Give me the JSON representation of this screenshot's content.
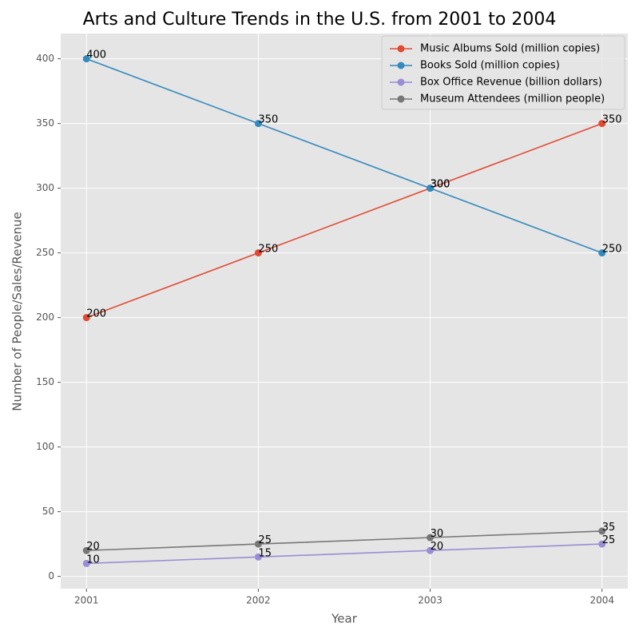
{
  "chart_data": {
    "type": "line",
    "title": "Arts and Culture Trends in the U.S. from 2001 to 2004",
    "x_label": "Year",
    "y_label": "Number of People/Sales/Revenue",
    "x": [
      2001,
      2002,
      2003,
      2004
    ],
    "xlim": [
      2000.85,
      2004.15
    ],
    "xticks": [
      2001,
      2002,
      2003,
      2004
    ],
    "ylim": [
      -9.5,
      419.5
    ],
    "yticks": [
      0,
      50,
      100,
      150,
      200,
      250,
      300,
      350,
      400
    ],
    "grid": true,
    "legend": "upper right",
    "series": [
      {
        "name": "Music Albums Sold (million copies)",
        "color": "#E24A33",
        "values": [
          200,
          250,
          300,
          350
        ]
      },
      {
        "name": "Books Sold (million copies)",
        "color": "#348ABD",
        "values": [
          400,
          350,
          300,
          250
        ]
      },
      {
        "name": "Box Office Revenue (billion dollars)",
        "color": "#988ED5",
        "values": [
          10,
          15,
          20,
          25
        ]
      },
      {
        "name": "Museum Attendees (million people)",
        "color": "#777777",
        "values": [
          20,
          25,
          30,
          35
        ]
      }
    ]
  }
}
